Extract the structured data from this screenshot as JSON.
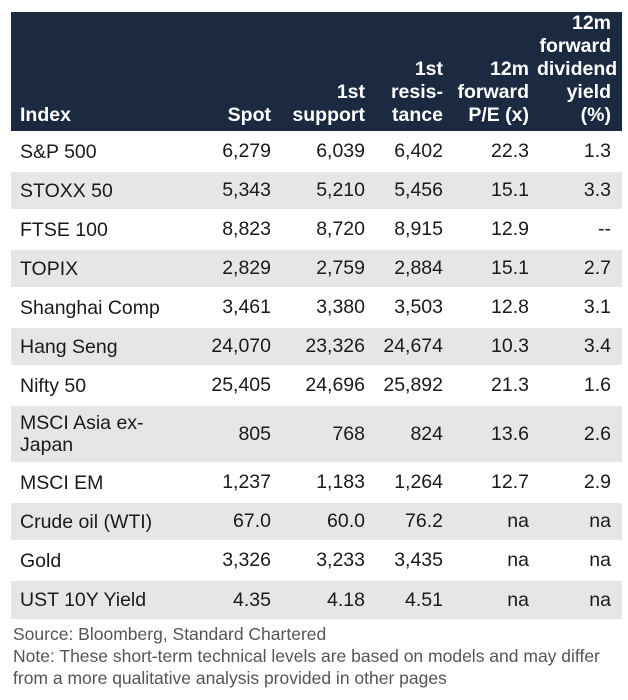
{
  "table": {
    "headers": {
      "index": "Index",
      "spot": "Spot",
      "support": [
        "1st",
        "support"
      ],
      "resistance": [
        "1st",
        "resis-",
        "tance"
      ],
      "pe": [
        "12m",
        "forward",
        "P/E (x)"
      ],
      "yield": [
        "12m",
        "forward",
        "dividend",
        "yield (%)"
      ]
    },
    "rows": [
      {
        "index": "S&P 500",
        "spot": "6,279",
        "support": "6,039",
        "resistance": "6,402",
        "pe": "22.3",
        "yield": "1.3"
      },
      {
        "index": "STOXX 50",
        "spot": "5,343",
        "support": "5,210",
        "resistance": "5,456",
        "pe": "15.1",
        "yield": "3.3"
      },
      {
        "index": "FTSE 100",
        "spot": "8,823",
        "support": "8,720",
        "resistance": "8,915",
        "pe": "12.9",
        "yield": "--"
      },
      {
        "index": "TOPIX",
        "spot": "2,829",
        "support": "2,759",
        "resistance": "2,884",
        "pe": "15.1",
        "yield": "2.7"
      },
      {
        "index": "Shanghai Comp",
        "spot": "3,461",
        "support": "3,380",
        "resistance": "3,503",
        "pe": "12.8",
        "yield": "3.1"
      },
      {
        "index": "Hang Seng",
        "spot": "24,070",
        "support": "23,326",
        "resistance": "24,674",
        "pe": "10.3",
        "yield": "3.4"
      },
      {
        "index": "Nifty 50",
        "spot": "25,405",
        "support": "24,696",
        "resistance": "25,892",
        "pe": "21.3",
        "yield": "1.6"
      },
      {
        "index": "MSCI Asia ex-Japan",
        "spot": "805",
        "support": "768",
        "resistance": "824",
        "pe": "13.6",
        "yield": "2.6"
      },
      {
        "index": "MSCI EM",
        "spot": "1,237",
        "support": "1,183",
        "resistance": "1,264",
        "pe": "12.7",
        "yield": "2.9"
      },
      {
        "index": "Crude oil (WTI)",
        "spot": "67.0",
        "support": "60.0",
        "resistance": "76.2",
        "pe": "na",
        "yield": "na"
      },
      {
        "index": "Gold",
        "spot": "3,326",
        "support": "3,233",
        "resistance": "3,435",
        "pe": "na",
        "yield": "na"
      },
      {
        "index": "UST 10Y Yield",
        "spot": "4.35",
        "support": "4.18",
        "resistance": "4.51",
        "pe": "na",
        "yield": "na"
      }
    ]
  },
  "source": "Source: Bloomberg, Standard Chartered",
  "note": "Note: These short-term technical levels are based on models and may differ from a more qualitative analysis provided in other pages"
}
